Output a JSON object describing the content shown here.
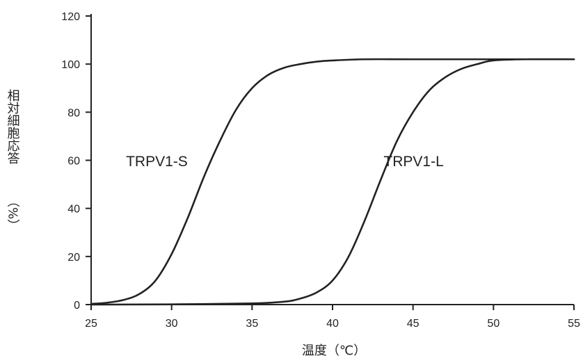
{
  "chart_data": {
    "type": "line",
    "title": "",
    "xlabel": "温度（℃）",
    "ylabel_main": "相対細胞応答",
    "ylabel_unit": "（%）",
    "xlim": [
      25,
      55
    ],
    "ylim": [
      0,
      120
    ],
    "xticks": [
      25,
      30,
      35,
      40,
      45,
      50,
      55
    ],
    "yticks": [
      0,
      20,
      40,
      60,
      80,
      100,
      120
    ],
    "grid": false,
    "series": [
      {
        "name": "TRPV1-S",
        "x": [
          25,
          26,
          27,
          28,
          29,
          30,
          31,
          32,
          33,
          34,
          35,
          36,
          37,
          38,
          39,
          40,
          42,
          45,
          50,
          55
        ],
        "y": [
          0.3,
          0.8,
          1.9,
          4.4,
          10,
          21,
          36,
          53,
          68,
          81,
          90,
          95.5,
          98.5,
          100,
          101,
          101.5,
          102,
          102,
          102,
          102
        ]
      },
      {
        "name": "TRPV1-L",
        "x": [
          25,
          30,
          35,
          37,
          38,
          39,
          40,
          41,
          42,
          43,
          44,
          45,
          46,
          47,
          48,
          49,
          50,
          52,
          55
        ],
        "y": [
          0,
          0.1,
          0.5,
          1.2,
          2.5,
          5,
          10,
          20,
          35,
          52,
          68,
          80,
          89,
          94.5,
          98,
          100,
          101.5,
          102,
          102
        ]
      }
    ]
  }
}
